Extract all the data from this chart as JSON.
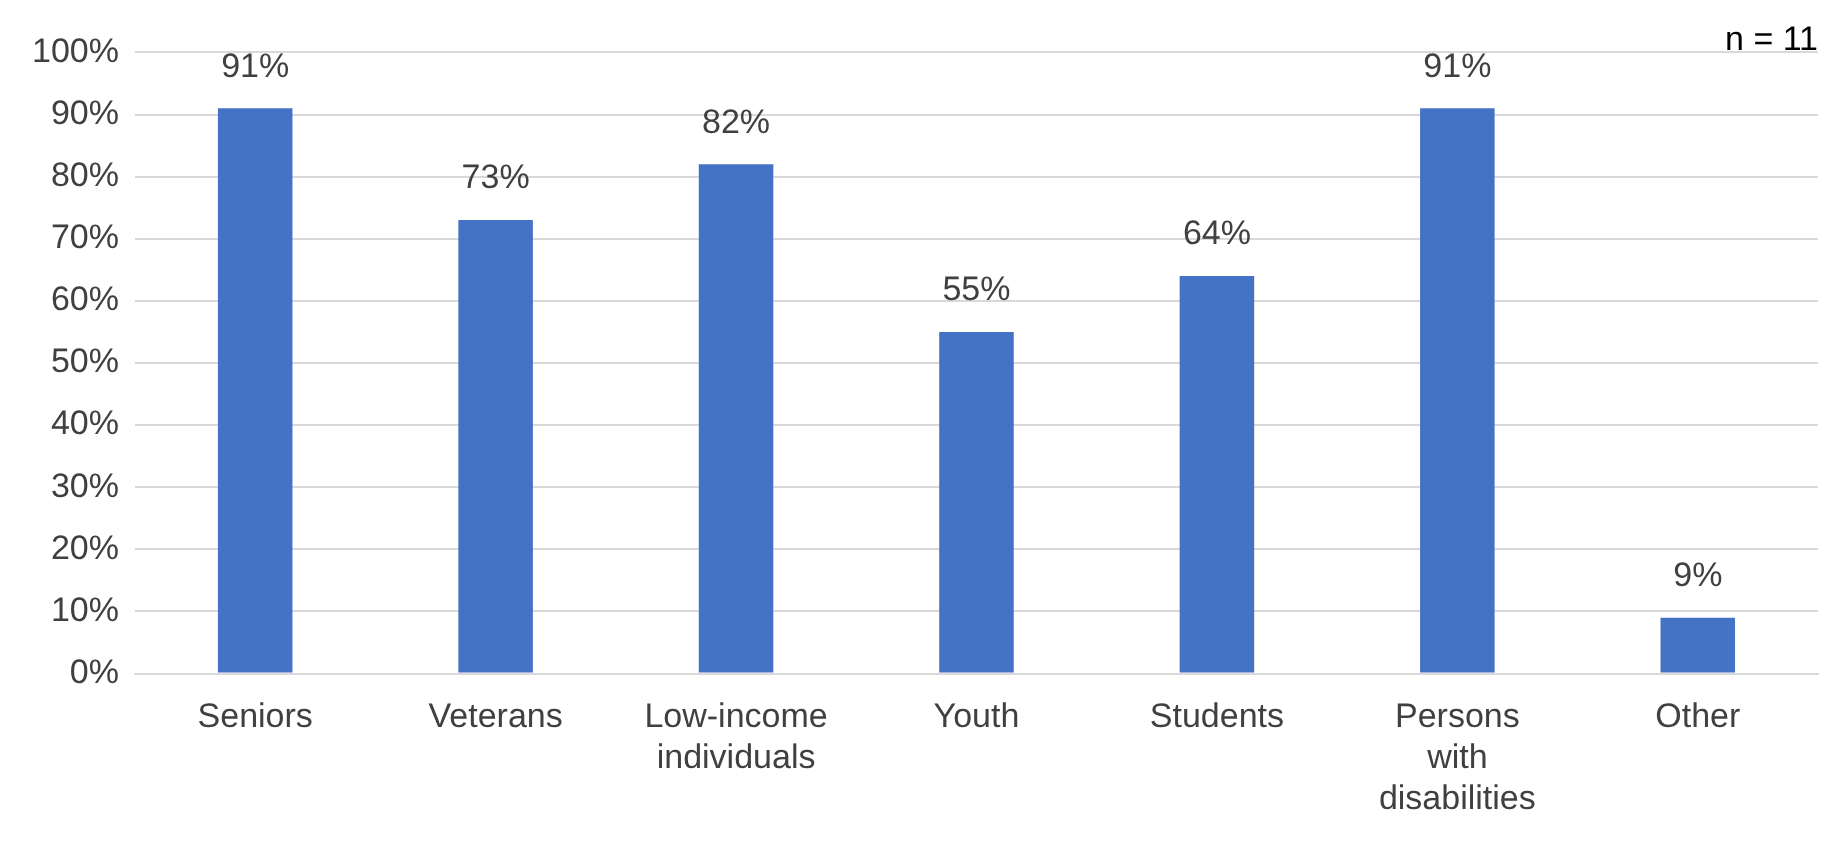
{
  "chart_data": {
    "type": "bar",
    "categories": [
      "Seniors",
      "Veterans",
      "Low-income individuals",
      "Youth",
      "Students",
      "Persons with disabilities",
      "Other"
    ],
    "values": [
      91,
      73,
      82,
      55,
      64,
      91,
      9
    ],
    "value_labels": [
      "91%",
      "73%",
      "82%",
      "55%",
      "64%",
      "91%",
      "9%"
    ],
    "color": "#4472c4",
    "ylim": [
      0,
      100
    ],
    "yticks": [
      {
        "value": 0,
        "label": "0%"
      },
      {
        "value": 10,
        "label": "10%"
      },
      {
        "value": 20,
        "label": "20%"
      },
      {
        "value": 30,
        "label": "30%"
      },
      {
        "value": 40,
        "label": "40%"
      },
      {
        "value": 50,
        "label": "50%"
      },
      {
        "value": 60,
        "label": "60%"
      },
      {
        "value": 70,
        "label": "70%"
      },
      {
        "value": 80,
        "label": "80%"
      },
      {
        "value": 90,
        "label": "90%"
      },
      {
        "value": 100,
        "label": "100%"
      }
    ],
    "grid": "y",
    "annotations": [
      "n = 11"
    ]
  }
}
